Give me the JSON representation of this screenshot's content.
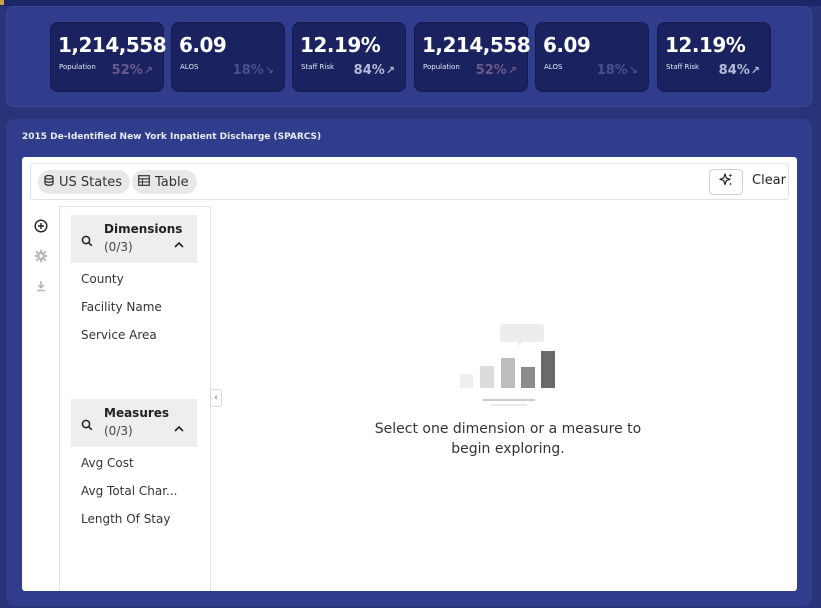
{
  "kpis": [
    {
      "value": "1,214,558",
      "label": "Population",
      "pct": "52%",
      "trend": "up"
    },
    {
      "value": "6.09",
      "label": "ALOS",
      "pct": "18%",
      "trend": "down"
    },
    {
      "value": "12.19%",
      "label": "Staff Risk",
      "pct": "84%",
      "trend": "up"
    },
    {
      "value": "1,214,558",
      "label": "Population",
      "pct": "52%",
      "trend": "up"
    },
    {
      "value": "6.09",
      "label": "ALOS",
      "pct": "18%",
      "trend": "down"
    },
    {
      "value": "12.19%",
      "label": "Staff Risk",
      "pct": "84%",
      "trend": "up"
    }
  ],
  "main": {
    "title": "2015 De-Identified New York Inpatient Discharge (SPARCS)"
  },
  "toolbar": {
    "source_label": "US States",
    "view_label": "Table",
    "clear_label": "Clear",
    "source_icon": "database-icon",
    "view_icon": "table-icon",
    "ai_icon": "sparkle-icon"
  },
  "rail": {
    "icons": [
      "add-circle-icon",
      "gear-icon",
      "download-icon"
    ]
  },
  "dimensions": {
    "title": "Dimensions",
    "count": "(0/3)",
    "items": [
      "County",
      "Facility Name",
      "Service Area"
    ]
  },
  "measures": {
    "title": "Measures",
    "count": "(0/3)",
    "items": [
      "Avg Cost",
      "Avg Total Char...",
      "Length Of Stay"
    ]
  },
  "empty_state": {
    "line1": "Select one dimension or a measure to",
    "line2": "begin exploring.",
    "icon": "bar-chart-placeholder-icon"
  },
  "colors": {
    "background": "#27347a",
    "panel": "#2f3d8c",
    "kpi_card": "#1a2260"
  }
}
